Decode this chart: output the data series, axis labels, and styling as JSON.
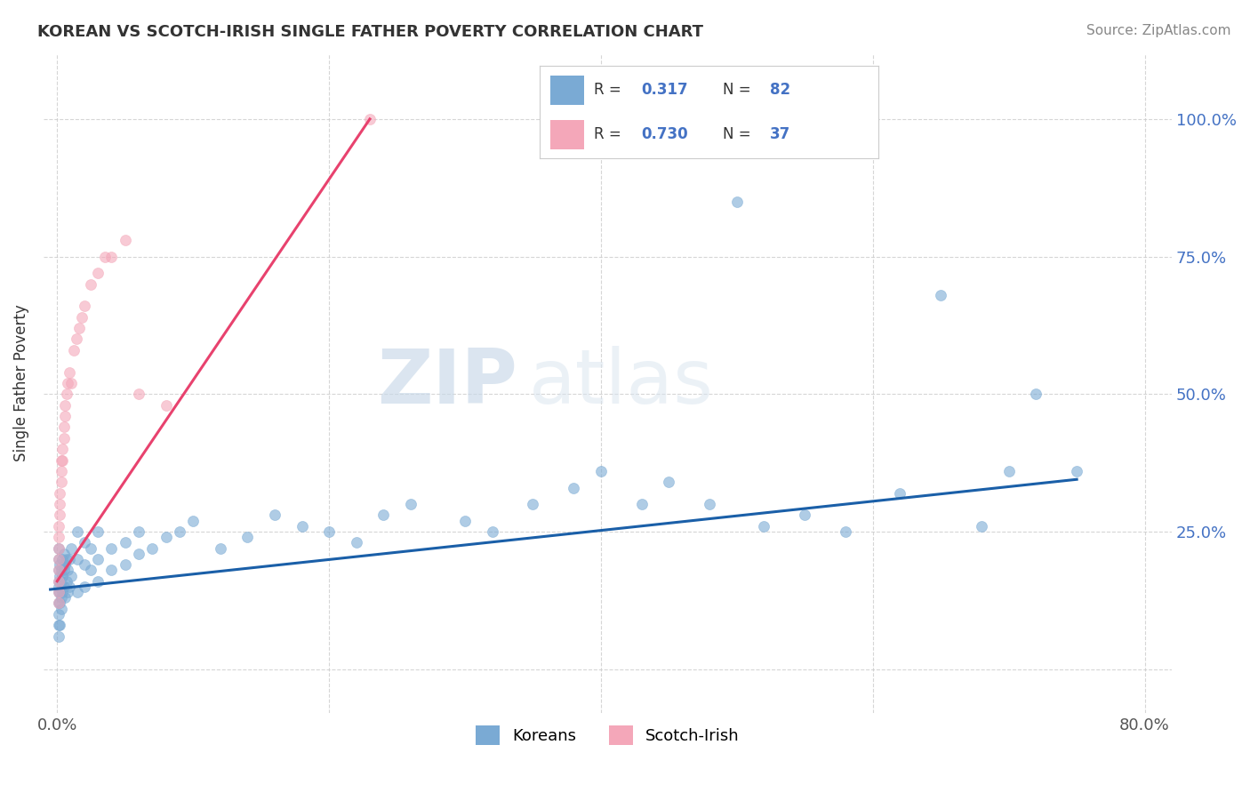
{
  "title": "KOREAN VS SCOTCH-IRISH SINGLE FATHER POVERTY CORRELATION CHART",
  "source": "Source: ZipAtlas.com",
  "ylabel": "Single Father Poverty",
  "xlim": [
    -0.01,
    0.82
  ],
  "ylim": [
    -0.08,
    1.12
  ],
  "xtick_positions": [
    0.0,
    0.2,
    0.4,
    0.6,
    0.8
  ],
  "xticklabels": [
    "0.0%",
    "",
    "",
    "",
    "80.0%"
  ],
  "ytick_positions": [
    0.0,
    0.25,
    0.5,
    0.75,
    1.0
  ],
  "yticklabels": [
    "",
    "25.0%",
    "50.0%",
    "75.0%",
    "100.0%"
  ],
  "korean_color": "#7aaad4",
  "scotch_color": "#f4a7b9",
  "korean_line_color": "#1a5fa8",
  "scotch_line_color": "#e8426e",
  "R_korean": 0.317,
  "N_korean": 82,
  "R_scotch": 0.73,
  "N_scotch": 37,
  "watermark_zip": "ZIP",
  "watermark_atlas": "atlas",
  "background_color": "#ffffff",
  "grid_color": "#cccccc",
  "korean_x": [
    0.001,
    0.001,
    0.001,
    0.001,
    0.001,
    0.001,
    0.001,
    0.001,
    0.001,
    0.001,
    0.002,
    0.002,
    0.002,
    0.002,
    0.002,
    0.003,
    0.003,
    0.003,
    0.003,
    0.004,
    0.004,
    0.004,
    0.005,
    0.005,
    0.005,
    0.006,
    0.006,
    0.007,
    0.007,
    0.008,
    0.008,
    0.009,
    0.009,
    0.01,
    0.01,
    0.015,
    0.015,
    0.015,
    0.02,
    0.02,
    0.02,
    0.025,
    0.025,
    0.03,
    0.03,
    0.03,
    0.04,
    0.04,
    0.05,
    0.05,
    0.06,
    0.06,
    0.07,
    0.08,
    0.09,
    0.1,
    0.12,
    0.14,
    0.16,
    0.18,
    0.2,
    0.22,
    0.24,
    0.26,
    0.3,
    0.32,
    0.35,
    0.38,
    0.4,
    0.43,
    0.45,
    0.48,
    0.5,
    0.52,
    0.55,
    0.58,
    0.62,
    0.65,
    0.68,
    0.7,
    0.72,
    0.75
  ],
  "korean_y": [
    0.18,
    0.16,
    0.14,
    0.12,
    0.1,
    0.08,
    0.06,
    0.2,
    0.22,
    0.15,
    0.17,
    0.12,
    0.19,
    0.14,
    0.08,
    0.16,
    0.11,
    0.18,
    0.13,
    0.17,
    0.14,
    0.2,
    0.18,
    0.15,
    0.21,
    0.19,
    0.13,
    0.2,
    0.16,
    0.18,
    0.14,
    0.2,
    0.15,
    0.22,
    0.17,
    0.2,
    0.14,
    0.25,
    0.19,
    0.15,
    0.23,
    0.22,
    0.18,
    0.2,
    0.16,
    0.25,
    0.22,
    0.18,
    0.23,
    0.19,
    0.21,
    0.25,
    0.22,
    0.24,
    0.25,
    0.27,
    0.22,
    0.24,
    0.28,
    0.26,
    0.25,
    0.23,
    0.28,
    0.3,
    0.27,
    0.25,
    0.3,
    0.33,
    0.36,
    0.3,
    0.34,
    0.3,
    0.85,
    0.26,
    0.28,
    0.25,
    0.32,
    0.68,
    0.26,
    0.36,
    0.5,
    0.36
  ],
  "scotch_x": [
    0.001,
    0.001,
    0.001,
    0.001,
    0.001,
    0.001,
    0.001,
    0.001,
    0.002,
    0.002,
    0.002,
    0.003,
    0.003,
    0.003,
    0.004,
    0.004,
    0.005,
    0.005,
    0.006,
    0.006,
    0.007,
    0.008,
    0.009,
    0.01,
    0.012,
    0.014,
    0.016,
    0.018,
    0.02,
    0.025,
    0.03,
    0.035,
    0.04,
    0.05,
    0.06,
    0.08,
    0.23
  ],
  "scotch_y": [
    0.16,
    0.18,
    0.2,
    0.22,
    0.24,
    0.14,
    0.12,
    0.26,
    0.28,
    0.3,
    0.32,
    0.34,
    0.36,
    0.38,
    0.4,
    0.38,
    0.42,
    0.44,
    0.46,
    0.48,
    0.5,
    0.52,
    0.54,
    0.52,
    0.58,
    0.6,
    0.62,
    0.64,
    0.66,
    0.7,
    0.72,
    0.75,
    0.75,
    0.78,
    0.5,
    0.48,
    1.0
  ],
  "korean_line_x": [
    -0.005,
    0.75
  ],
  "korean_line_y": [
    0.145,
    0.345
  ],
  "scotch_line_x": [
    0.0,
    0.23
  ],
  "scotch_line_y": [
    0.16,
    1.0
  ]
}
